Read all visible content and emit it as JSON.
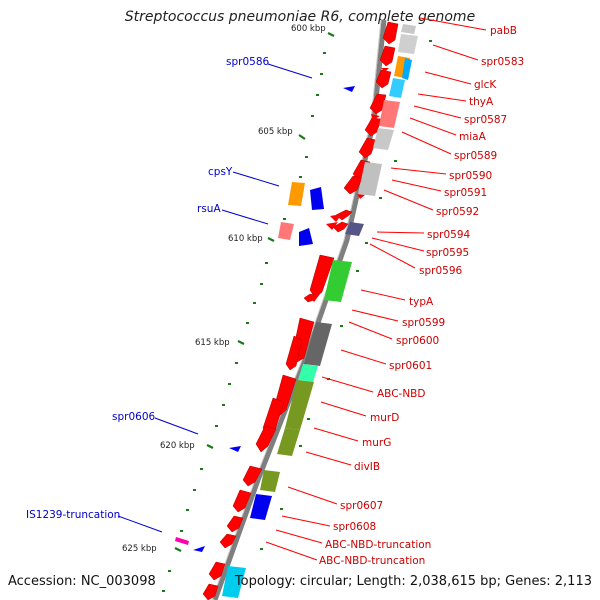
{
  "title": "Streptococcus pneumoniae R6, complete genome",
  "footer": {
    "accession": "Accession: NC_003098",
    "summary": "Topology: circular; Length: 2,038,615 bp; Genes: 2,113"
  },
  "ticks": [
    "600 kbp",
    "605 kbp",
    "610 kbp",
    "615 kbp",
    "620 kbp",
    "625 kbp"
  ],
  "right_labels": [
    "pabB",
    "spr0583",
    "glcK",
    "thyA",
    "spr0587",
    "miaA",
    "spr0589",
    "spr0590",
    "spr0591",
    "spr0592",
    "spr0594",
    "spr0595",
    "spr0596",
    "typA",
    "spr0599",
    "spr0600",
    "spr0601",
    "ABC-NBD",
    "murD",
    "murG",
    "divIB",
    "spr0607",
    "spr0608",
    "ABC-NBD-truncation",
    "ABC-NBD-truncation"
  ],
  "left_labels": [
    "spr0586",
    "cpsY",
    "rsuA",
    "spr0606",
    "IS1239-truncation"
  ],
  "colors": {
    "gene": "#ff0000",
    "label_right": "#cc0000",
    "label_left": "#0000cc",
    "tick": "#1a7a1a",
    "backbone": "#808080"
  }
}
